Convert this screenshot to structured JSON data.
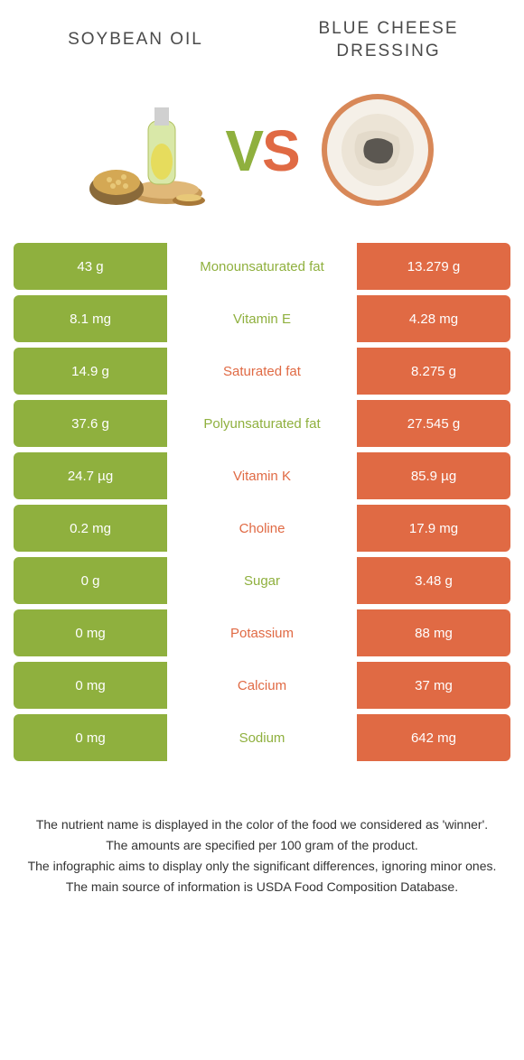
{
  "header": {
    "left_title": "SOYBEAN OIL",
    "right_title": "BLUE CHEESE DRESSING",
    "vs_v": "V",
    "vs_s": "S"
  },
  "colors": {
    "green": "#8fb03e",
    "orange": "#e06a44",
    "background": "#ffffff",
    "text": "#333333"
  },
  "images": {
    "left_alt": "soybean-oil",
    "right_alt": "blue-cheese-dressing"
  },
  "rows": [
    {
      "left": "43 g",
      "label": "Monounsaturated fat",
      "right": "13.279 g",
      "winner": "green"
    },
    {
      "left": "8.1 mg",
      "label": "Vitamin E",
      "right": "4.28 mg",
      "winner": "green"
    },
    {
      "left": "14.9 g",
      "label": "Saturated fat",
      "right": "8.275 g",
      "winner": "orange"
    },
    {
      "left": "37.6 g",
      "label": "Polyunsaturated fat",
      "right": "27.545 g",
      "winner": "green"
    },
    {
      "left": "24.7 µg",
      "label": "Vitamin K",
      "right": "85.9 µg",
      "winner": "orange"
    },
    {
      "left": "0.2 mg",
      "label": "Choline",
      "right": "17.9 mg",
      "winner": "orange"
    },
    {
      "left": "0 g",
      "label": "Sugar",
      "right": "3.48 g",
      "winner": "green"
    },
    {
      "left": "0 mg",
      "label": "Potassium",
      "right": "88 mg",
      "winner": "orange"
    },
    {
      "left": "0 mg",
      "label": "Calcium",
      "right": "37 mg",
      "winner": "orange"
    },
    {
      "left": "0 mg",
      "label": "Sodium",
      "right": "642 mg",
      "winner": "green"
    }
  ],
  "footer": {
    "line1": "The nutrient name is displayed in the color of the food we considered as 'winner'.",
    "line2": "The amounts are specified per 100 gram of the product.",
    "line3": "The infographic aims to display only the significant differences, ignoring minor ones.",
    "line4": "The main source of information is USDA Food Composition Database."
  }
}
